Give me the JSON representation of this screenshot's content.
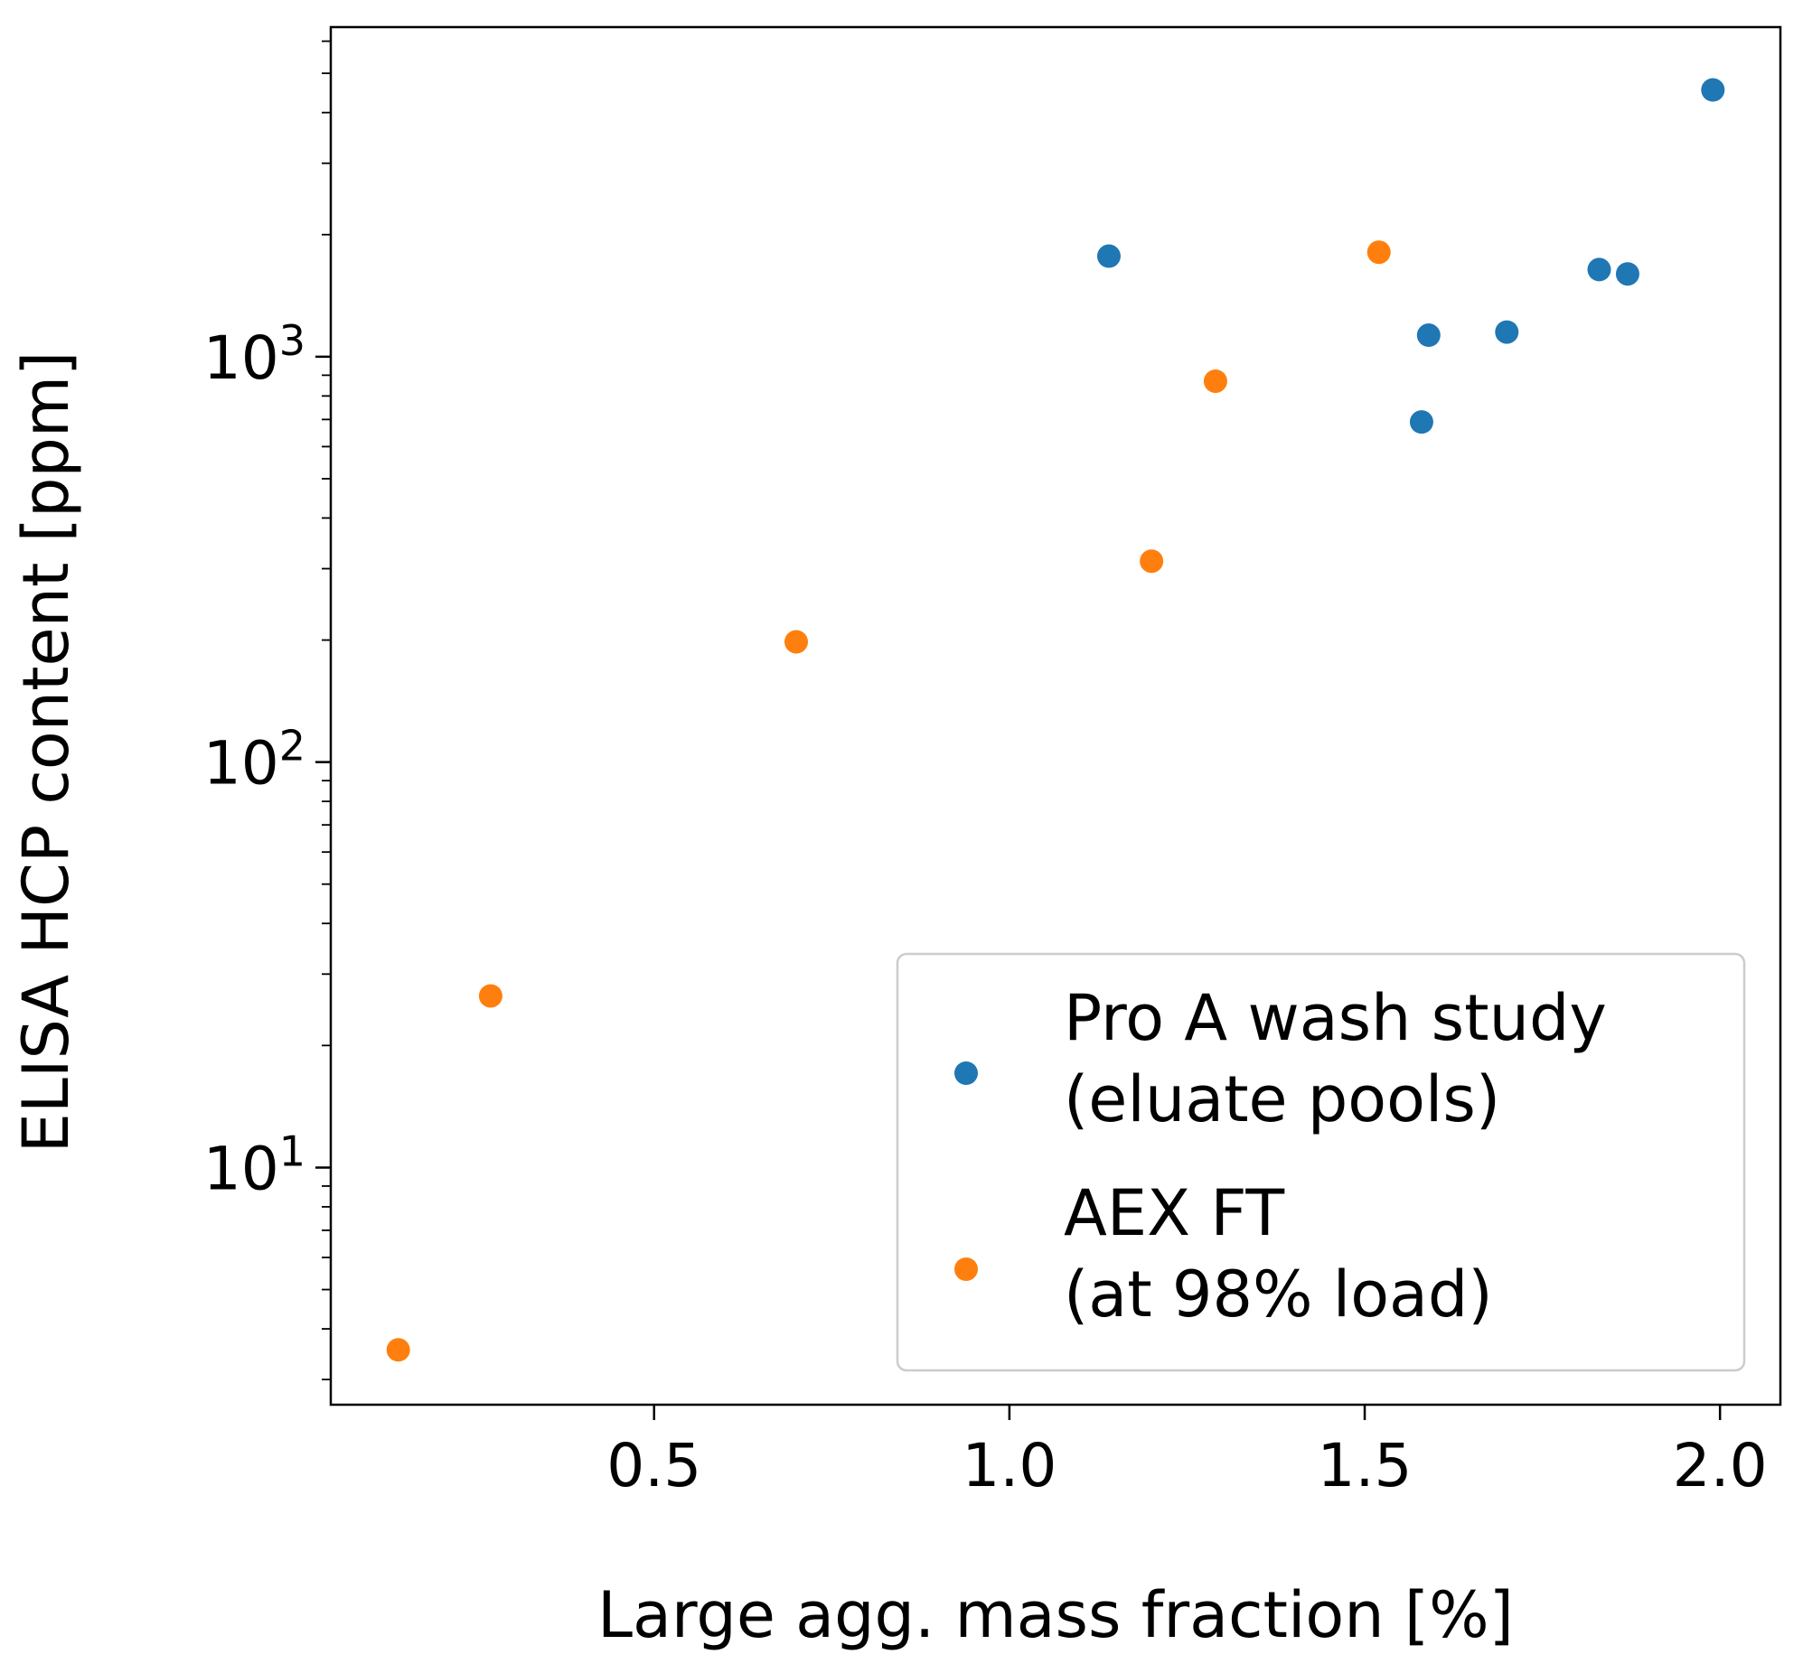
{
  "chart_data": {
    "type": "scatter",
    "title": "",
    "xlabel": "Large agg. mass fraction [%]",
    "ylabel": "ELISA HCP content [ppm]",
    "xlim": [
      0.045,
      2.085
    ],
    "ylim": [
      2.6,
      6500
    ],
    "yscale": "log",
    "grid": false,
    "legend_position": "lower-right",
    "x_ticks": [
      {
        "value": 0.5,
        "label": "0.5"
      },
      {
        "value": 1.0,
        "label": "1.0"
      },
      {
        "value": 1.5,
        "label": "1.5"
      },
      {
        "value": 2.0,
        "label": "2.0"
      }
    ],
    "y_ticks": [
      {
        "value": 10,
        "base": "10",
        "exp": "1"
      },
      {
        "value": 100,
        "base": "10",
        "exp": "2"
      },
      {
        "value": 1000,
        "base": "10",
        "exp": "3"
      }
    ],
    "series": [
      {
        "name_lines": [
          "Pro A wash study",
          "(eluate pools)"
        ],
        "color": "#1f77b4",
        "points": [
          {
            "x": 1.14,
            "y": 1770
          },
          {
            "x": 1.58,
            "y": 690
          },
          {
            "x": 1.59,
            "y": 1130
          },
          {
            "x": 1.7,
            "y": 1150
          },
          {
            "x": 1.83,
            "y": 1640
          },
          {
            "x": 1.87,
            "y": 1600
          },
          {
            "x": 1.99,
            "y": 4550
          }
        ]
      },
      {
        "name_lines": [
          "AEX FT",
          "(at 98% load)"
        ],
        "color": "#ff7f0e",
        "points": [
          {
            "x": 0.14,
            "y": 3.55
          },
          {
            "x": 0.27,
            "y": 26.5
          },
          {
            "x": 0.7,
            "y": 198
          },
          {
            "x": 1.2,
            "y": 313
          },
          {
            "x": 1.29,
            "y": 870
          },
          {
            "x": 1.52,
            "y": 1810
          }
        ]
      }
    ]
  }
}
